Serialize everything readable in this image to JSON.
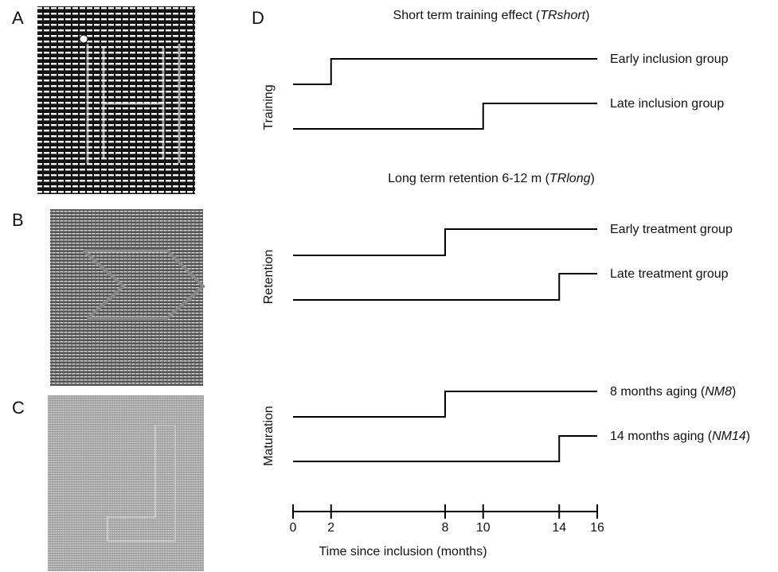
{
  "panel_labels": [
    "A",
    "B",
    "C",
    "D"
  ],
  "timeline": {
    "xlim": [
      0,
      16
    ],
    "xticks": [
      0,
      2,
      8,
      10,
      14,
      16
    ],
    "xlabel": "Time since inclusion (months)",
    "sections": [
      {
        "ylabel": "Training",
        "heading": [
          "Short term training effect (",
          "TRshort",
          ")"
        ],
        "rows": [
          {
            "label": [
              "Early inclusion group"
            ],
            "step": 2
          },
          {
            "label": [
              "Late inclusion group"
            ],
            "step": 10
          }
        ]
      },
      {
        "ylabel": "Retention",
        "heading": [
          "Long term retention 6-12 m (",
          "TRlong",
          ")"
        ],
        "rows": [
          {
            "label": [
              "Early treatment group"
            ],
            "step": 8
          },
          {
            "label": [
              "Late treatment group"
            ],
            "step": 14
          }
        ]
      },
      {
        "ylabel": "Maturation",
        "rows": [
          {
            "label": [
              "8 months aging (",
              "NM8",
              ")"
            ],
            "step": 8
          },
          {
            "label": [
              "14 months aging (",
              "NM14",
              ")"
            ],
            "step": 14
          }
        ]
      }
    ]
  }
}
